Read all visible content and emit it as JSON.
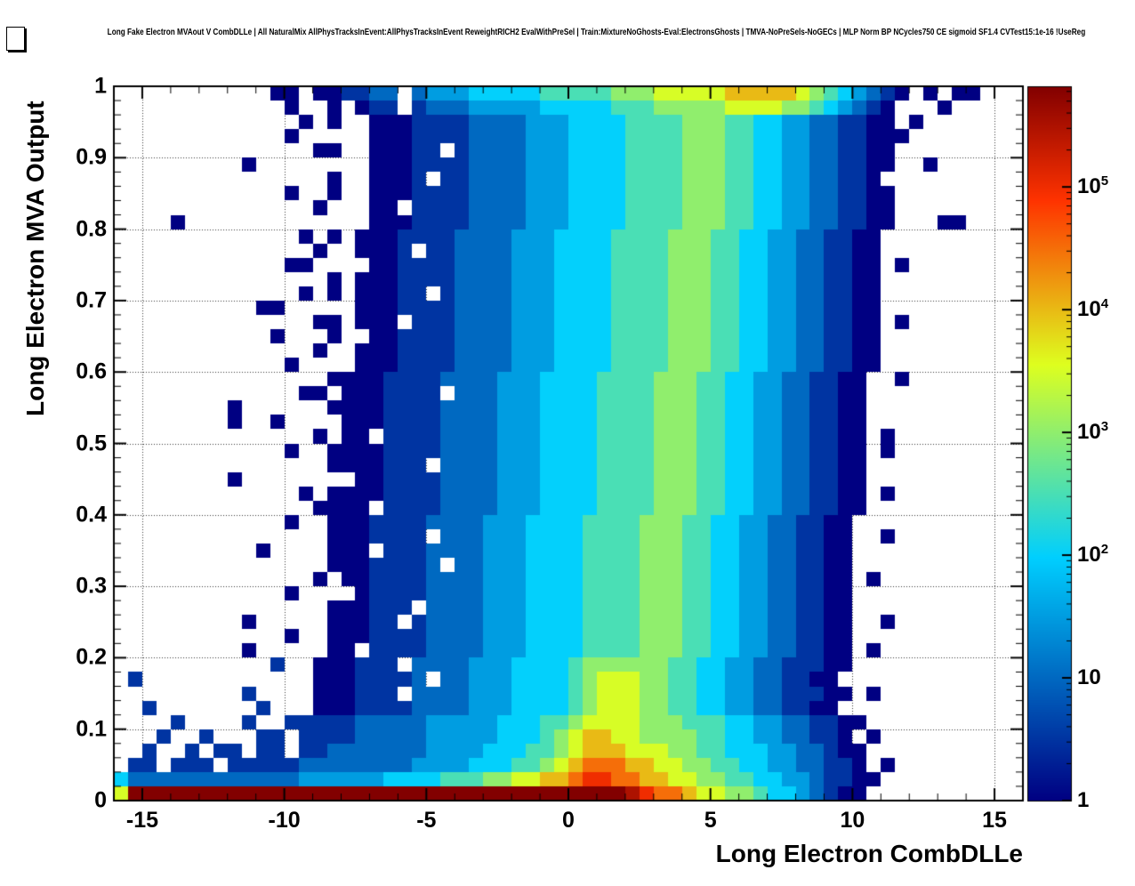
{
  "window": {
    "background": "#ffffff"
  },
  "chart_data": {
    "type": "heatmap",
    "title": "Long Fake Electron MVAout V CombDLLe | All NaturalMix AllPhysTracksInEvent:AllPhysTracksInEvent ReweightRICH2 EvalWithPreSel | Train:MixtureNoGhosts-Eval:ElectronsGhosts | TMVA-NoPreSels-NoGECs | MLP Norm BP NCycles750 CE sigmoid SF1.4 CVTest15:1e-16 !UseReg",
    "x": {
      "title": "Long Electron CombDLLe",
      "min": -16,
      "max": 16,
      "ticks": [
        -15,
        -10,
        -5,
        0,
        5,
        10,
        15
      ],
      "tick_labels": [
        "-15",
        "-10",
        "-5",
        "0",
        "5",
        "10",
        "15"
      ],
      "minor_step": 1
    },
    "y": {
      "title": "Long Electron MVA Output",
      "min": 0,
      "max": 1,
      "ticks": [
        0,
        0.1,
        0.2,
        0.3,
        0.4,
        0.5,
        0.6,
        0.7,
        0.8,
        0.9,
        1
      ],
      "tick_labels": [
        "0",
        "0.1",
        "0.2",
        "0.3",
        "0.4",
        "0.5",
        "0.6",
        "0.7",
        "0.8",
        "0.9",
        "1"
      ],
      "minor_step": 0.02
    },
    "z": {
      "scale": "log",
      "min": 1,
      "max_log10": 5.82,
      "tick_exponents": [
        0,
        1,
        2,
        3,
        4,
        5
      ],
      "tick_labels": [
        "1",
        "10",
        "10^2",
        "10^3",
        "10^4",
        "10^5"
      ]
    },
    "palette": {
      "stops": [
        0,
        0.34,
        0.61,
        0.84,
        1
      ],
      "red": [
        0,
        0,
        222,
        255,
        130
      ],
      "green": [
        0,
        207,
        255,
        51,
        0
      ],
      "blue": [
        130,
        255,
        31,
        0,
        0
      ]
    },
    "grid": true,
    "bins": {
      "nx": 64,
      "ny": 50,
      "x_bin_width": 0.5,
      "y_bin_width": 0.02,
      "encoding": "each char encodes log10(count)=level/2; '.'=empty; chars 0-9,a,b,c are levels 0-12; rows listed bottom-to-top as 8 chunks of 8 bins",
      "rows_bottom_to_top": [
        [
          "7ccccccc",
          "cccccccc",
          "cccccccc",
          "cccccccc",
          "ccccba99",
          "87766544",
          "32100...",
          "........"
        ],
        [
          "42222222",
          "22222333",
          "33344445",
          "55667788",
          "9aa99887",
          "76655443",
          "321100..",
          "........"
        ],
        [
          ".11.111.",
          "11111222",
          "22222333",
          "34445567",
          "89998877",
          "66554433",
          "22110.0.",
          "........"
        ],
        [
          "..1..1.1",
          "1.11.112",
          "22222233",
          "33444556",
          "78887776",
          "65544433",
          "22100...",
          "........"
        ],
        [
          "...1..1.",
          "..11.111",
          "12222233",
          "33344456",
          "78877666",
          "65544332",
          "2110.0..",
          "........"
        ],
        [
          "....1...",
          ".1..1111",
          "12222233",
          "33344455",
          "67777666",
          "55544332",
          "21100...",
          "........"
        ],
        [
          "..1.....",
          "..1...00",
          "01111222",
          "23334444",
          "56777665",
          "54433221",
          "100.....",
          "........"
        ],
        [
          "........",
          ".1....00",
          "0111.222",
          "23334444",
          "56777665",
          "54433221",
          "1100.0..",
          "........"
        ],
        [
          ".1......",
          "......00",
          "011112.2",
          "23334444",
          "56777665",
          "54433221",
          "100.....",
          "........"
        ],
        [
          "........",
          "...1..00",
          "0111.222",
          "23334444",
          "56666665",
          "54433221",
          "1100....",
          "........"
        ],
        [
          "........",
          ".0.....0",
          "0.111122",
          "22333444",
          "45555666",
          "55443322",
          "1100.0..",
          "........"
        ],
        [
          "........",
          "....0..0",
          "00111122",
          "22333444",
          "45555666",
          "55443322",
          "1100....",
          "........"
        ],
        [
          "........",
          ".0.....0",
          "0011.122",
          "22333444",
          "45555666",
          "55443322",
          "1100..0.",
          "........"
        ],
        [
          "........",
          ".......0",
          "00111.22",
          "22333444",
          "45555666",
          "55443322",
          "1100....",
          "........"
        ],
        [
          "........",
          "....0...",
          ".0111122",
          "22333444",
          "45555666",
          "55443322",
          "1100....",
          "........"
        ],
        [
          "........",
          "......0.",
          "00111122",
          "22333444",
          "45555666",
          "55443322",
          "1100.0..",
          "........"
        ],
        [
          "........",
          ".......0",
          "0011112.",
          "22333444",
          "45555666",
          "55443322",
          "1100....",
          "........"
        ],
        [
          "........",
          "..0....0",
          "00.11122",
          "22333444",
          "45555666",
          "55443322",
          "1100....",
          "........"
        ],
        [
          "........",
          ".......0",
          "001111.2",
          "22333444",
          "45555666",
          "55443322",
          "1100..0.",
          "........"
        ],
        [
          "........",
          "....0..0",
          "00111122",
          "22333444",
          "45555666",
          "55443322",
          "1100....",
          "........"
        ],
        [
          "........",
          "......00",
          "00.11112",
          "22233344",
          "44555566",
          "65544332",
          "21100...",
          "........"
        ],
        [
          "........",
          ".....0.0",
          "00011112",
          "22233344",
          "44555566",
          "65544332",
          "21100.0.",
          "........"
        ],
        [
          "........",
          "0.......",
          ".0011112",
          "22233344",
          "44555566",
          "65544332",
          "21100...",
          "........"
        ],
        [
          "........",
          ".......0",
          "000111.2",
          "22233344",
          "44555566",
          "65544332",
          "21100...",
          "........"
        ],
        [
          "........",
          "....0..0",
          "00011112",
          "22233344",
          "44555566",
          "65544332",
          "21100.0.",
          "........"
        ],
        [
          "........",
          "......0.",
          "00.11112",
          "22233344",
          "44555566",
          "65544332",
          "21100.0.",
          "........"
        ],
        [
          "........",
          "0..0....",
          "00011112",
          "22233344",
          "44555566",
          "65544332",
          "21100...",
          "........"
        ],
        [
          "........",
          "0......0",
          "00011112",
          "22233344",
          "44555566",
          "65544332",
          "21100...",
          "........"
        ],
        [
          "........",
          ".....00.",
          "0001111.",
          "22233344",
          "44555566",
          "65544332",
          "21100...",
          "........"
        ],
        [
          "........",
          ".......0",
          "00011112",
          "22233344",
          "44555566",
          "65544332",
          "21100..0",
          "........"
        ],
        [
          "........",
          "....0...",
          ".0001111",
          "22223334",
          "44455556",
          "66554433",
          "221100..",
          "........"
        ],
        [
          "........",
          "......0.",
          ".0001111",
          "22223334",
          "44455556",
          "66554433",
          "221100..",
          "........"
        ],
        [
          "........",
          "...0...0",
          "..001111",
          "22223334",
          "44455556",
          "66554433",
          "221100..",
          "........"
        ],
        [
          "........",
          "......00",
          ".000.111",
          "22223334",
          "44455556",
          "66554433",
          "221100.0",
          "........"
        ],
        [
          "........",
          "..00....",
          ".0001111",
          "22223334",
          "44455556",
          "66554433",
          "221100..",
          "........"
        ],
        [
          "........",
          ".....0.0",
          ".00011.1",
          "22223334",
          "44455556",
          "66554433",
          "221100..",
          "........"
        ],
        [
          "........",
          ".......0",
          ".0001111",
          "22223334",
          "44455556",
          "66554433",
          "221100..",
          "........"
        ],
        [
          "........",
          "....00..",
          "..001111",
          "22223334",
          "44455556",
          "66554433",
          "221100.0",
          "........"
        ],
        [
          "........",
          "......0.",
          ".0001.11",
          "22223334",
          "44455556",
          "66554433",
          "221100..",
          "........"
        ],
        [
          "........",
          ".....0.0",
          ".0001111",
          "22223334",
          "44455556",
          "66554433",
          "221100..",
          "........"
        ],
        [
          "....0...",
          "........",
          "..000111",
          "12222333",
          "44445555",
          "66655443",
          "3221100.",
          "..00...."
        ],
        [
          "........",
          "......0.",
          "..00.111",
          "12222333",
          "44445555",
          "66655443",
          "3221100.",
          "........"
        ],
        [
          "........",
          "....0..0",
          "..000111",
          "12222333",
          "44445555",
          "66655443",
          "3221100.",
          "........"
        ],
        [
          "........",
          ".......0",
          "..0001.1",
          "12222333",
          "44445555",
          "66655443",
          "322110..",
          "........"
        ],
        [
          "........",
          ".0......",
          "..000111",
          "12222333",
          "44445555",
          "66655443",
          "3221100.",
          ".0......"
        ],
        [
          "........",
          "......00",
          "..00011.",
          "12222333",
          "44445555",
          "66655443",
          "3221100.",
          "........"
        ],
        [
          "........",
          "....0...",
          "..000111",
          "12222333",
          "44445555",
          "66655443",
          "32211000",
          "........"
        ],
        [
          "........",
          ".....0.0",
          "..000111",
          "12222333",
          "44445555",
          "66655443",
          "3221100.",
          "0......."
        ],
        [
          "........",
          "....0..0",
          ".011.122",
          "23333344",
          "44455566",
          "66677776",
          "6543210.",
          "..0....."
        ],
        [
          "........",
          "...00.00",
          "1122.233",
          "34444455",
          "55566677",
          "77788888",
          "76543210",
          ".0.00..."
        ]
      ]
    }
  }
}
